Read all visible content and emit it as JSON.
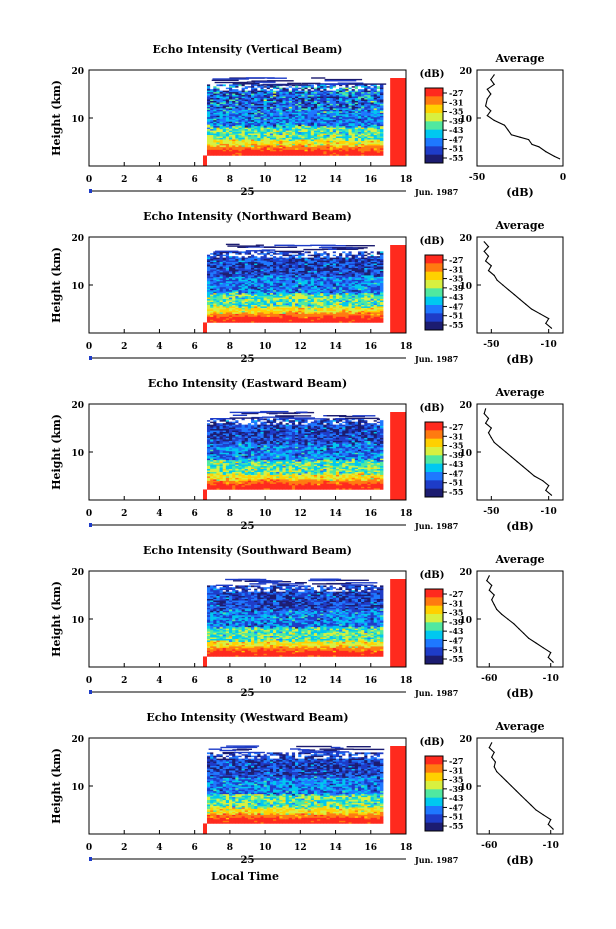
{
  "figure": {
    "xlabel": "Local Time"
  },
  "colorbar": {
    "unit_label": "(dB)",
    "ticks": [
      "-27",
      "-31",
      "-35",
      "-39",
      "-43",
      "-47",
      "-51",
      "-55"
    ],
    "colors": [
      "#ff2a1e",
      "#ff7a10",
      "#ffd000",
      "#d8f040",
      "#50e8a0",
      "#00c8f0",
      "#1e78ff",
      "#1e3cc8",
      "#1c1c70"
    ]
  },
  "chart_data": [
    {
      "type": "heatmap",
      "title": "Echo Intensity (Vertical Beam)",
      "ylabel": "Height (km)",
      "xlim": [
        0,
        18
      ],
      "ylim": [
        0,
        20
      ],
      "xticks": [
        "0",
        "2",
        "4",
        "6",
        "8",
        "10",
        "12",
        "14",
        "16",
        "18"
      ],
      "yticks": [
        "10",
        "20"
      ],
      "date_day": "25",
      "date_month": "Jun. 1987",
      "data_start_hour": 6.7,
      "gap_hours": [
        16.7,
        17.1
      ],
      "profile": {
        "title": "Average",
        "xlabel": "(dB)",
        "xlim": [
          -50,
          0
        ],
        "xticks": [
          "-50",
          "0"
        ],
        "yticks": [
          "10",
          "20"
        ],
        "points": [
          [
            -2,
            1.5
          ],
          [
            -5,
            2
          ],
          [
            -10,
            3
          ],
          [
            -14,
            4
          ],
          [
            -18,
            4.5
          ],
          [
            -20,
            5.5
          ],
          [
            -25,
            6
          ],
          [
            -30,
            6.5
          ],
          [
            -32,
            7.5
          ],
          [
            -34,
            8.5
          ],
          [
            -40,
            9.5
          ],
          [
            -44,
            10.5
          ],
          [
            -42,
            11.5
          ],
          [
            -45,
            12.5
          ],
          [
            -44,
            14
          ],
          [
            -42,
            15
          ],
          [
            -44,
            16
          ],
          [
            -40,
            17
          ],
          [
            -42,
            18
          ],
          [
            -40,
            19
          ]
        ]
      }
    },
    {
      "type": "heatmap",
      "title": "Echo Intensity (Northward Beam)",
      "ylabel": "Height (km)",
      "xlim": [
        0,
        18
      ],
      "ylim": [
        0,
        20
      ],
      "xticks": [
        "0",
        "2",
        "4",
        "6",
        "8",
        "10",
        "12",
        "14",
        "16",
        "18"
      ],
      "yticks": [
        "10",
        "20"
      ],
      "date_day": "25",
      "date_month": "Jun. 1987",
      "data_start_hour": 6.7,
      "gap_hours": [
        16.7,
        17.1
      ],
      "profile": {
        "title": "Average",
        "xlabel": "(dB)",
        "xlim": [
          -60,
          0
        ],
        "xticks": [
          "-50",
          "-10"
        ],
        "yticks": [
          "10",
          "20"
        ],
        "points": [
          [
            -8,
            1
          ],
          [
            -12,
            2
          ],
          [
            -10,
            3
          ],
          [
            -16,
            4
          ],
          [
            -22,
            5
          ],
          [
            -26,
            6
          ],
          [
            -30,
            7
          ],
          [
            -34,
            8
          ],
          [
            -38,
            9
          ],
          [
            -42,
            10
          ],
          [
            -46,
            11
          ],
          [
            -48,
            12
          ],
          [
            -52,
            13
          ],
          [
            -50,
            14
          ],
          [
            -54,
            15
          ],
          [
            -52,
            16
          ],
          [
            -55,
            17
          ],
          [
            -52,
            18
          ],
          [
            -55,
            19
          ]
        ]
      }
    },
    {
      "type": "heatmap",
      "title": "Echo Intensity (Eastward Beam)",
      "ylabel": "Height (km)",
      "xlim": [
        0,
        18
      ],
      "ylim": [
        0,
        20
      ],
      "xticks": [
        "0",
        "2",
        "4",
        "6",
        "8",
        "10",
        "12",
        "14",
        "16",
        "18"
      ],
      "yticks": [
        "10",
        "20"
      ],
      "date_day": "25",
      "date_month": "Jun. 1987",
      "data_start_hour": 6.7,
      "gap_hours": [
        16.7,
        17.1
      ],
      "profile": {
        "title": "Average",
        "xlabel": "(dB)",
        "xlim": [
          -60,
          0
        ],
        "xticks": [
          "-50",
          "-10"
        ],
        "yticks": [
          "10",
          "20"
        ],
        "points": [
          [
            -8,
            1
          ],
          [
            -12,
            2
          ],
          [
            -10,
            3
          ],
          [
            -14,
            4
          ],
          [
            -20,
            5
          ],
          [
            -24,
            6
          ],
          [
            -28,
            7
          ],
          [
            -32,
            8
          ],
          [
            -36,
            9
          ],
          [
            -40,
            10
          ],
          [
            -44,
            11
          ],
          [
            -48,
            12
          ],
          [
            -50,
            13
          ],
          [
            -52,
            14
          ],
          [
            -50,
            15
          ],
          [
            -54,
            16
          ],
          [
            -52,
            17
          ],
          [
            -55,
            18
          ],
          [
            -54,
            19
          ]
        ]
      }
    },
    {
      "type": "heatmap",
      "title": "Echo Intensity (Southward Beam)",
      "ylabel": "Height (km)",
      "xlim": [
        0,
        18
      ],
      "ylim": [
        0,
        20
      ],
      "xticks": [
        "0",
        "2",
        "4",
        "6",
        "8",
        "10",
        "12",
        "14",
        "16",
        "18"
      ],
      "yticks": [
        "10",
        "20"
      ],
      "date_day": "25",
      "date_month": "Jun. 1987",
      "data_start_hour": 6.7,
      "gap_hours": [
        16.7,
        17.1
      ],
      "profile": {
        "title": "Average",
        "xlabel": "(dB)",
        "xlim": [
          -70,
          0
        ],
        "xticks": [
          "-60",
          "-10"
        ],
        "yticks": [
          "10",
          "20"
        ],
        "points": [
          [
            -8,
            1
          ],
          [
            -12,
            2
          ],
          [
            -10,
            3
          ],
          [
            -16,
            4
          ],
          [
            -22,
            5
          ],
          [
            -28,
            6
          ],
          [
            -32,
            7
          ],
          [
            -36,
            8
          ],
          [
            -40,
            9
          ],
          [
            -45,
            10
          ],
          [
            -50,
            11
          ],
          [
            -54,
            12
          ],
          [
            -56,
            13
          ],
          [
            -58,
            14
          ],
          [
            -56,
            15
          ],
          [
            -60,
            16
          ],
          [
            -58,
            17
          ],
          [
            -62,
            18
          ],
          [
            -60,
            19
          ]
        ]
      }
    },
    {
      "type": "heatmap",
      "title": "Echo Intensity (Westward Beam)",
      "ylabel": "Height (km)",
      "xlim": [
        0,
        18
      ],
      "ylim": [
        0,
        20
      ],
      "xticks": [
        "0",
        "2",
        "4",
        "6",
        "8",
        "10",
        "12",
        "14",
        "16",
        "18"
      ],
      "yticks": [
        "10",
        "20"
      ],
      "date_day": "25",
      "date_month": "Jun. 1987",
      "data_start_hour": 6.7,
      "gap_hours": [
        16.7,
        17.1
      ],
      "profile": {
        "title": "Average",
        "xlabel": "(dB)",
        "xlim": [
          -70,
          0
        ],
        "xticks": [
          "-60",
          "-10"
        ],
        "yticks": [
          "10",
          "20"
        ],
        "points": [
          [
            -8,
            1
          ],
          [
            -12,
            2
          ],
          [
            -10,
            3
          ],
          [
            -16,
            4
          ],
          [
            -22,
            5
          ],
          [
            -26,
            6
          ],
          [
            -30,
            7
          ],
          [
            -34,
            8
          ],
          [
            -38,
            9
          ],
          [
            -42,
            10
          ],
          [
            -46,
            11
          ],
          [
            -50,
            12
          ],
          [
            -54,
            13
          ],
          [
            -56,
            14
          ],
          [
            -55,
            15
          ],
          [
            -58,
            16
          ],
          [
            -56,
            17
          ],
          [
            -60,
            18
          ],
          [
            -58,
            19
          ]
        ]
      }
    }
  ]
}
